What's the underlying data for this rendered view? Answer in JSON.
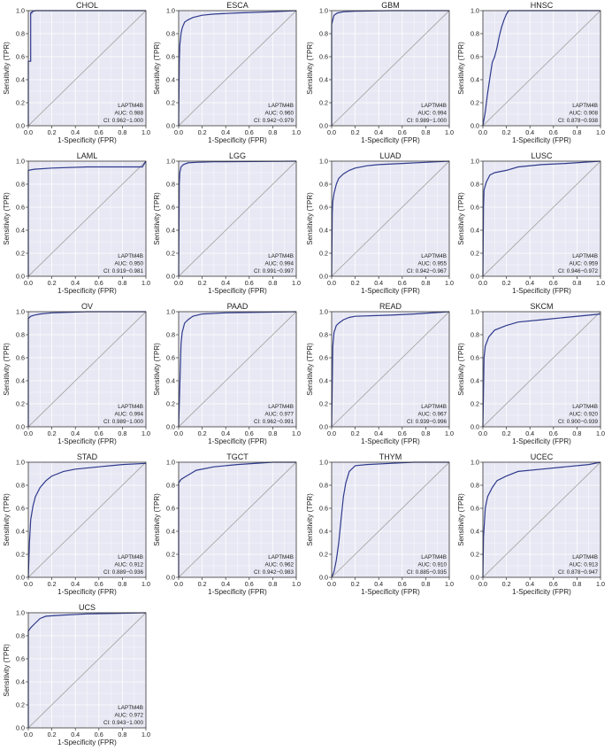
{
  "figure": {
    "xlabel": "1-Specificity (FPR)",
    "ylabel": "Sensitivity (TPR)",
    "gene": "LAPTM4B",
    "auc_prefix": "AUC: ",
    "ci_prefix": "CI: "
  },
  "colors": {
    "panel_bg": "#e8e8f4",
    "grid": "#ffffff",
    "diagonal": "#a9a9a9",
    "curve": "#2e3a8c",
    "axis": "#333333",
    "text": "#222222"
  },
  "chart_data": [
    {
      "type": "line",
      "title": "CHOL",
      "auc": "0.988",
      "ci": "0.962−1.000",
      "xlim": [
        0,
        1
      ],
      "ylim": [
        0,
        1
      ],
      "grid": true,
      "legend": "bottom-right",
      "x": [
        0,
        0,
        0.02,
        0.02,
        0.03,
        0.03,
        0.06,
        1
      ],
      "y": [
        0,
        0.56,
        0.56,
        0.98,
        0.98,
        0.99,
        1.0,
        1.0
      ]
    },
    {
      "type": "line",
      "title": "ESCA",
      "auc": "0.960",
      "ci": "0.942−0.979",
      "xlim": [
        0,
        1
      ],
      "ylim": [
        0,
        1
      ],
      "grid": true,
      "legend": "bottom-right",
      "x": [
        0,
        0.005,
        0.01,
        0.02,
        0.03,
        0.05,
        0.08,
        0.12,
        0.2,
        0.3,
        0.5,
        0.8,
        1
      ],
      "y": [
        0,
        0.55,
        0.7,
        0.8,
        0.85,
        0.9,
        0.92,
        0.94,
        0.96,
        0.97,
        0.98,
        0.99,
        1.0
      ]
    },
    {
      "type": "line",
      "title": "GBM",
      "auc": "0.994",
      "ci": "0.989−1.000",
      "xlim": [
        0,
        1
      ],
      "ylim": [
        0,
        1
      ],
      "grid": true,
      "legend": "bottom-right",
      "x": [
        0,
        0,
        0.01,
        0.02,
        0.05,
        0.1,
        0.2,
        0.5,
        1
      ],
      "y": [
        0,
        0.88,
        0.92,
        0.96,
        0.98,
        0.99,
        0.995,
        1.0,
        1.0
      ]
    },
    {
      "type": "line",
      "title": "HNSC",
      "auc": "0.908",
      "ci": "0.878−0.938",
      "xlim": [
        0,
        1
      ],
      "ylim": [
        0,
        1
      ],
      "grid": true,
      "legend": "bottom-right",
      "x": [
        0,
        0.02,
        0.04,
        0.06,
        0.08,
        0.1,
        0.12,
        0.14,
        0.16,
        0.18,
        0.2,
        0.22,
        0.25,
        1
      ],
      "y": [
        0,
        0.12,
        0.28,
        0.42,
        0.55,
        0.6,
        0.68,
        0.78,
        0.86,
        0.92,
        0.97,
        1.0,
        1.0,
        1.0
      ]
    },
    {
      "type": "line",
      "title": "LAML",
      "auc": "0.950",
      "ci": "0.919−0.981",
      "xlim": [
        0,
        1
      ],
      "ylim": [
        0,
        1
      ],
      "grid": true,
      "legend": "bottom-right",
      "x": [
        0,
        0,
        0.05,
        0.2,
        0.5,
        0.8,
        0.97,
        1
      ],
      "y": [
        0,
        0.92,
        0.93,
        0.94,
        0.95,
        0.95,
        0.95,
        1.0
      ]
    },
    {
      "type": "line",
      "title": "LGG",
      "auc": "0.994",
      "ci": "0.991−0.997",
      "xlim": [
        0,
        1
      ],
      "ylim": [
        0,
        1
      ],
      "grid": true,
      "legend": "bottom-right",
      "x": [
        0,
        0.005,
        0.01,
        0.02,
        0.04,
        0.08,
        0.15,
        0.3,
        1
      ],
      "y": [
        0,
        0.8,
        0.9,
        0.95,
        0.97,
        0.985,
        0.99,
        0.995,
        1.0
      ]
    },
    {
      "type": "line",
      "title": "LUAD",
      "auc": "0.955",
      "ci": "0.942−0.967",
      "xlim": [
        0,
        1
      ],
      "ylim": [
        0,
        1
      ],
      "grid": true,
      "legend": "bottom-right",
      "x": [
        0,
        0.005,
        0.01,
        0.02,
        0.04,
        0.06,
        0.1,
        0.15,
        0.2,
        0.3,
        0.4,
        0.6,
        0.8,
        1
      ],
      "y": [
        0,
        0.55,
        0.65,
        0.72,
        0.8,
        0.85,
        0.89,
        0.92,
        0.94,
        0.96,
        0.97,
        0.98,
        0.99,
        1.0
      ]
    },
    {
      "type": "line",
      "title": "LUSC",
      "auc": "0.959",
      "ci": "0.946−0.972",
      "xlim": [
        0,
        1
      ],
      "ylim": [
        0,
        1
      ],
      "grid": true,
      "legend": "bottom-right",
      "x": [
        0,
        0.005,
        0.01,
        0.03,
        0.06,
        0.1,
        0.2,
        0.3,
        0.5,
        0.7,
        1
      ],
      "y": [
        0,
        0.6,
        0.75,
        0.82,
        0.88,
        0.9,
        0.92,
        0.95,
        0.97,
        0.98,
        1.0
      ]
    },
    {
      "type": "line",
      "title": "OV",
      "auc": "0.994",
      "ci": "0.989−1.000",
      "xlim": [
        0,
        1
      ],
      "ylim": [
        0,
        1
      ],
      "grid": true,
      "legend": "bottom-right",
      "x": [
        0,
        0,
        0.02,
        0.05,
        0.1,
        0.2,
        0.5,
        1
      ],
      "y": [
        0,
        0.94,
        0.96,
        0.97,
        0.98,
        0.99,
        1.0,
        1.0
      ]
    },
    {
      "type": "line",
      "title": "PAAD",
      "auc": "0.977",
      "ci": "0.962−0.991",
      "xlim": [
        0,
        1
      ],
      "ylim": [
        0,
        1
      ],
      "grid": true,
      "legend": "bottom-right",
      "x": [
        0,
        0.01,
        0.02,
        0.03,
        0.05,
        0.08,
        0.12,
        0.2,
        0.4,
        1
      ],
      "y": [
        0,
        0.35,
        0.72,
        0.82,
        0.9,
        0.93,
        0.96,
        0.98,
        0.99,
        1.0
      ]
    },
    {
      "type": "line",
      "title": "READ",
      "auc": "0.967",
      "ci": "0.939−0.996",
      "xlim": [
        0,
        1
      ],
      "ylim": [
        0,
        1
      ],
      "grid": true,
      "legend": "bottom-right",
      "x": [
        0,
        0.01,
        0.02,
        0.04,
        0.06,
        0.1,
        0.15,
        0.2,
        0.5,
        0.7,
        1
      ],
      "y": [
        0,
        0.7,
        0.82,
        0.88,
        0.9,
        0.93,
        0.95,
        0.96,
        0.97,
        0.98,
        1.0
      ]
    },
    {
      "type": "line",
      "title": "SKCM",
      "auc": "0.920",
      "ci": "0.900−0.939",
      "xlim": [
        0,
        1
      ],
      "ylim": [
        0,
        1
      ],
      "grid": true,
      "legend": "bottom-right",
      "x": [
        0,
        0.01,
        0.02,
        0.05,
        0.1,
        0.2,
        0.3,
        0.5,
        0.7,
        1
      ],
      "y": [
        0,
        0.6,
        0.7,
        0.78,
        0.84,
        0.88,
        0.91,
        0.93,
        0.95,
        0.98
      ]
    },
    {
      "type": "line",
      "title": "STAD",
      "auc": "0.912",
      "ci": "0.889−0.936",
      "xlim": [
        0,
        1
      ],
      "ylim": [
        0,
        1
      ],
      "grid": true,
      "legend": "bottom-right",
      "x": [
        0,
        0.01,
        0.02,
        0.04,
        0.06,
        0.1,
        0.15,
        0.2,
        0.3,
        0.4,
        0.6,
        0.8,
        1
      ],
      "y": [
        0,
        0.3,
        0.5,
        0.62,
        0.7,
        0.78,
        0.84,
        0.88,
        0.92,
        0.94,
        0.96,
        0.98,
        0.99
      ]
    },
    {
      "type": "line",
      "title": "TGCT",
      "auc": "0.962",
      "ci": "0.942−0.983",
      "xlim": [
        0,
        1
      ],
      "ylim": [
        0,
        1
      ],
      "grid": true,
      "legend": "bottom-right",
      "x": [
        0,
        0,
        0.02,
        0.05,
        0.1,
        0.15,
        0.3,
        0.5,
        0.8,
        1
      ],
      "y": [
        0,
        0.82,
        0.85,
        0.87,
        0.9,
        0.93,
        0.96,
        0.98,
        1.0,
        1.0
      ]
    },
    {
      "type": "line",
      "title": "THYM",
      "auc": "0.910",
      "ci": "0.885−0.935",
      "xlim": [
        0,
        1
      ],
      "ylim": [
        0,
        1
      ],
      "grid": true,
      "legend": "bottom-right",
      "x": [
        0,
        0.02,
        0.04,
        0.06,
        0.08,
        0.1,
        0.12,
        0.15,
        0.2,
        0.3,
        0.5,
        0.7,
        1
      ],
      "y": [
        0,
        0.05,
        0.15,
        0.3,
        0.5,
        0.7,
        0.82,
        0.92,
        0.97,
        0.98,
        0.99,
        1.0,
        1.0
      ]
    },
    {
      "type": "line",
      "title": "UCEC",
      "auc": "0.913",
      "ci": "0.878−0.947",
      "xlim": [
        0,
        1
      ],
      "ylim": [
        0,
        1
      ],
      "grid": true,
      "legend": "bottom-right",
      "x": [
        0,
        0.005,
        0.02,
        0.04,
        0.08,
        0.12,
        0.2,
        0.3,
        0.5,
        0.7,
        0.9,
        1
      ],
      "y": [
        0,
        0.35,
        0.6,
        0.7,
        0.78,
        0.84,
        0.88,
        0.92,
        0.94,
        0.96,
        0.98,
        1.0
      ]
    },
    {
      "type": "line",
      "title": "UCS",
      "auc": "0.972",
      "ci": "0.943−1.000",
      "xlim": [
        0,
        1
      ],
      "ylim": [
        0,
        1
      ],
      "grid": true,
      "legend": "bottom-right",
      "x": [
        0,
        0,
        0.02,
        0.05,
        0.1,
        0.15,
        0.3,
        0.5,
        1
      ],
      "y": [
        0,
        0.84,
        0.87,
        0.9,
        0.95,
        0.97,
        0.98,
        0.99,
        1.0
      ]
    }
  ]
}
